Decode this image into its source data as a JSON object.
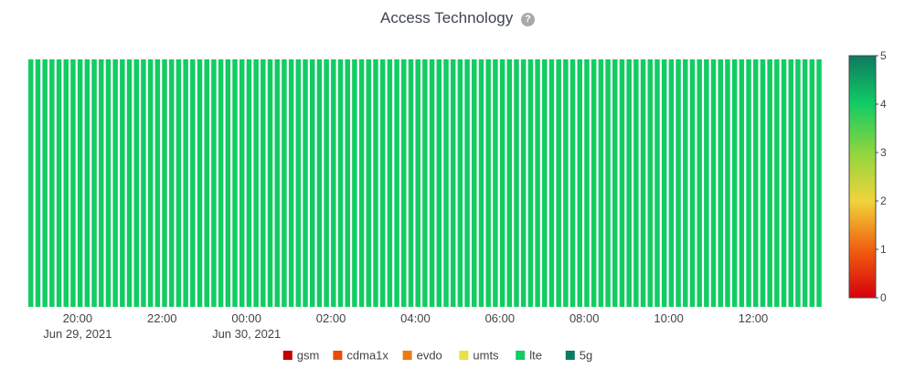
{
  "header": {
    "title": "Access Technology",
    "help_icon": "question-circle-icon",
    "help_glyph": "?"
  },
  "colors": {
    "lte": "#12cc63",
    "gsm": "#c00000",
    "cdma1x": "#ec4a07",
    "evdo": "#ea7a15",
    "umts": "#e8e04a",
    "5g": "#0d7a62",
    "grid": "#e0e0e0"
  },
  "chart_data": {
    "type": "heatmap",
    "title": "Access Technology",
    "xlabel": "",
    "ylabel": "",
    "x_start": "2021-06-29 18:50",
    "x_end": "2021-06-30 13:40",
    "bin_minutes": 10,
    "bin_count": 113,
    "value_all_bins": 4,
    "category_all_bins": "lte",
    "x_ticks": [
      {
        "t": "2021-06-29 20:00",
        "label": "20:00",
        "sub": "Jun 29, 2021"
      },
      {
        "t": "2021-06-29 22:00",
        "label": "22:00",
        "sub": ""
      },
      {
        "t": "2021-06-30 00:00",
        "label": "00:00",
        "sub": "Jun 30, 2021"
      },
      {
        "t": "2021-06-30 02:00",
        "label": "02:00",
        "sub": ""
      },
      {
        "t": "2021-06-30 04:00",
        "label": "04:00",
        "sub": ""
      },
      {
        "t": "2021-06-30 06:00",
        "label": "06:00",
        "sub": ""
      },
      {
        "t": "2021-06-30 08:00",
        "label": "08:00",
        "sub": ""
      },
      {
        "t": "2021-06-30 10:00",
        "label": "10:00",
        "sub": ""
      },
      {
        "t": "2021-06-30 12:00",
        "label": "12:00",
        "sub": ""
      }
    ],
    "colorscale": {
      "range": [
        0,
        5
      ],
      "ticks": [
        "0",
        "1",
        "2",
        "3",
        "4",
        "5"
      ],
      "stops": [
        {
          "v": 0,
          "color": "#d7000a"
        },
        {
          "v": 1,
          "color": "#f06010"
        },
        {
          "v": 2,
          "color": "#f0d43a"
        },
        {
          "v": 3,
          "color": "#8fd53e"
        },
        {
          "v": 4,
          "color": "#12cc63"
        },
        {
          "v": 5,
          "color": "#0d7a62"
        }
      ]
    },
    "legend": {
      "placement": "bottom",
      "items": [
        {
          "label": "gsm",
          "color": "#c00000"
        },
        {
          "label": "cdma1x",
          "color": "#ec4a07"
        },
        {
          "label": "evdo",
          "color": "#ea7a15"
        },
        {
          "label": "umts",
          "color": "#e8e04a"
        },
        {
          "label": "lte",
          "color": "#12cc63"
        },
        {
          "label": "5g",
          "color": "#0d7a62"
        }
      ]
    }
  }
}
